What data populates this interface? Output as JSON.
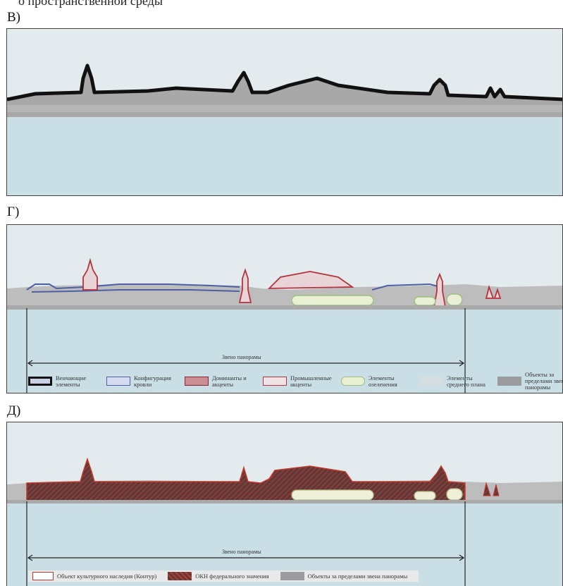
{
  "top_cut_text": "о пространственной среды",
  "panels": [
    {
      "label": "В)"
    },
    {
      "label": "Г)",
      "zone_label": "Звено панорамы",
      "legend": [
        "Венчающие элементы",
        "Конфигурация кровли",
        "Доминанты и акценты",
        "Промышленные акценты",
        "Элементы озеленения",
        "Элементы среднего плана",
        "Объекты за пределами звена панорамы"
      ]
    },
    {
      "label": "Д)",
      "zone_label": "Звено панорамы",
      "legend": [
        "Объект культурного наследия (Контур)",
        "ОКН федерального значения",
        "Объекты за пределами звена панорамы"
      ]
    }
  ],
  "colors": {
    "sky": "#e3ebee",
    "water": "#c9dfe5",
    "silhouette": "#a8a8a8",
    "outline": "#111111",
    "roof_blue": "#4d5fa5",
    "dominant_red": "#b5333d",
    "green": "#e9efd3",
    "heritage_red": "#c0392b"
  }
}
